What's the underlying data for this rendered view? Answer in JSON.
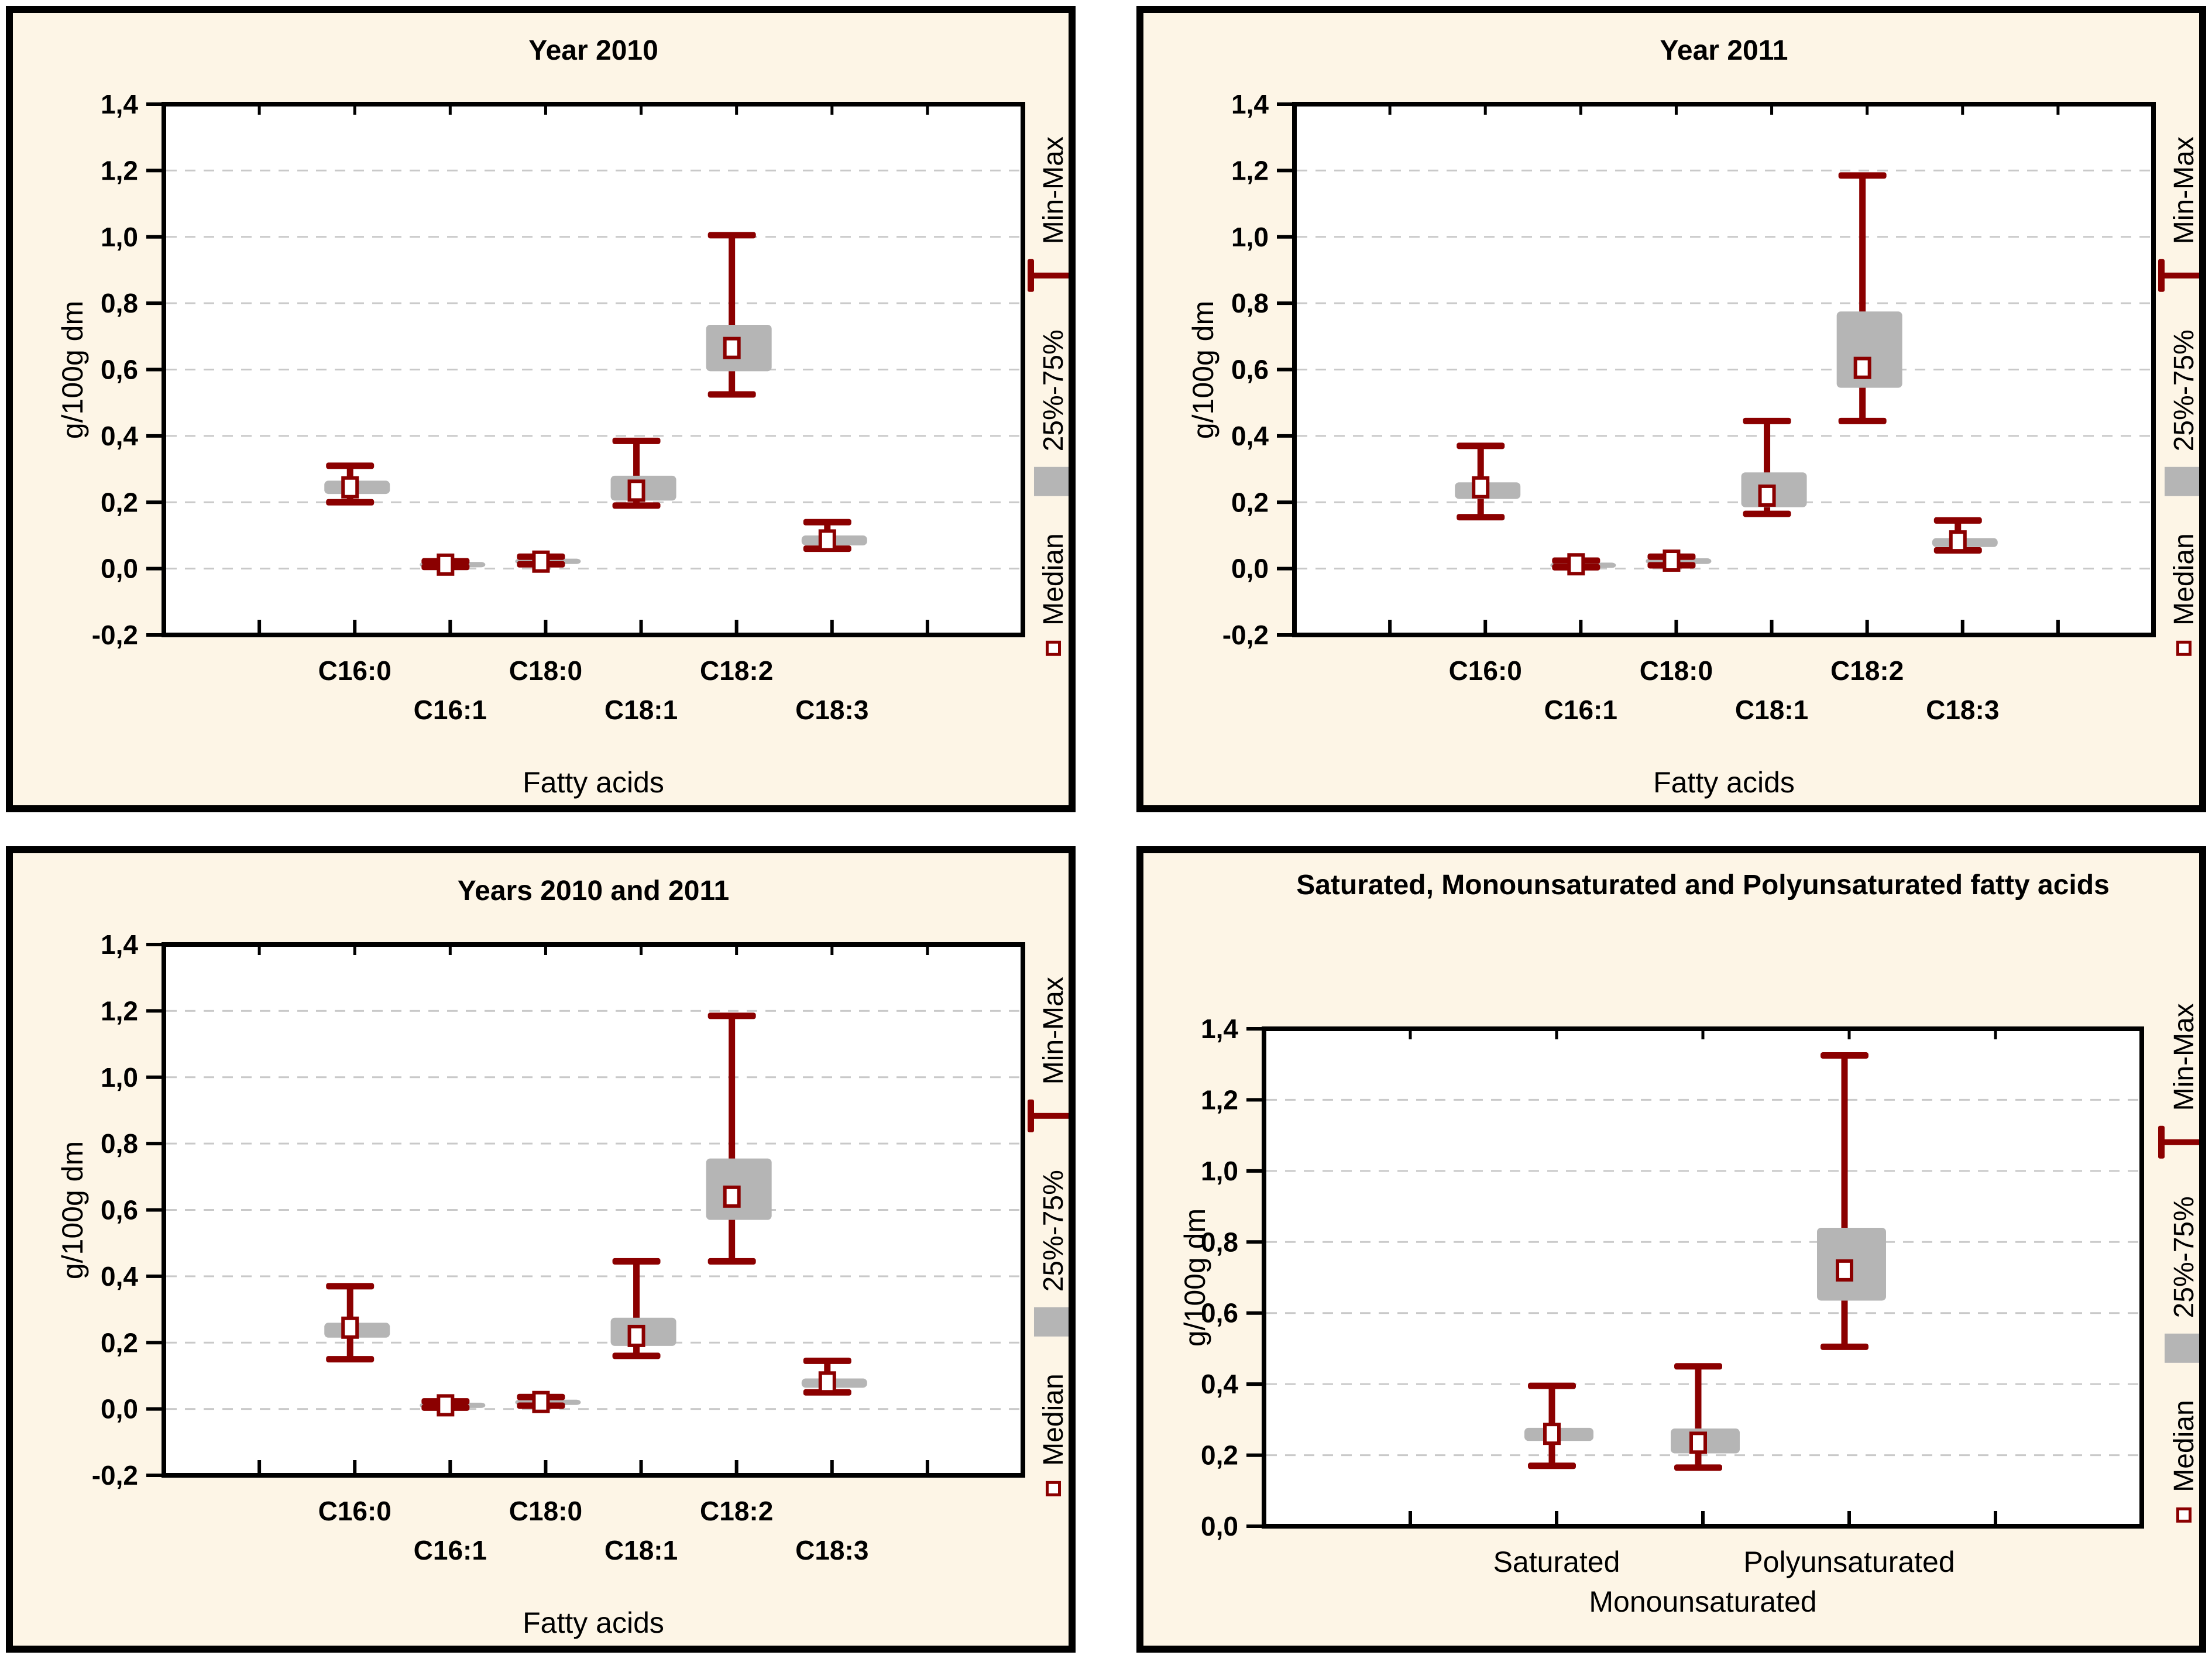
{
  "colors": {
    "panel_background": "#FDF5E6",
    "plot_background": "#FFFFFF",
    "border": "#000000",
    "gridline": "#C9C9C9",
    "box_fill": "#B5B5B5",
    "whisker": "#8B0000",
    "median_fill": "#FFFFFF",
    "text": "#000000"
  },
  "legend": {
    "minmax": "Min-Max",
    "box": "25%-75%",
    "median": "Median"
  },
  "chart_data": [
    {
      "type": "box",
      "title": "Year 2010",
      "xlabel": "Fatty acids",
      "ylabel": "g/100g dm",
      "ylim": [
        -0.2,
        1.4
      ],
      "yticks": [
        -0.2,
        0.0,
        0.2,
        0.4,
        0.6,
        0.8,
        1.0,
        1.2,
        1.4
      ],
      "ytick_labels": [
        "-0,2",
        "0,0",
        "0,2",
        "0,4",
        "0,6",
        "0,8",
        "1,0",
        "1,2",
        "1,4"
      ],
      "grid": true,
      "legend_position": "right-rotated",
      "axis_divisions": 9,
      "category_slots": [
        2,
        3,
        4,
        5,
        6,
        7
      ],
      "label_rows": [
        0,
        1,
        0,
        1,
        0,
        1
      ],
      "categories": [
        "C16:0",
        "C16:1",
        "C18:0",
        "C18:1",
        "C18:2",
        "C18:3"
      ],
      "series": [
        {
          "name": "C16:0",
          "min": 0.2,
          "q1": 0.225,
          "median": 0.245,
          "q3": 0.265,
          "max": 0.31
        },
        {
          "name": "C16:1",
          "min": 0.005,
          "q1": 0.004,
          "median": 0.012,
          "q3": 0.02,
          "max": 0.022
        },
        {
          "name": "C18:0",
          "min": 0.013,
          "q1": 0.014,
          "median": 0.021,
          "q3": 0.03,
          "max": 0.036
        },
        {
          "name": "C18:1",
          "min": 0.19,
          "q1": 0.205,
          "median": 0.235,
          "q3": 0.28,
          "max": 0.385
        },
        {
          "name": "C18:2",
          "min": 0.525,
          "q1": 0.595,
          "median": 0.665,
          "q3": 0.735,
          "max": 1.005
        },
        {
          "name": "C18:3",
          "min": 0.06,
          "q1": 0.07,
          "median": 0.085,
          "q3": 0.1,
          "max": 0.14
        }
      ]
    },
    {
      "type": "box",
      "title": "Year 2011",
      "xlabel": "Fatty acids",
      "ylabel": "g/100g dm",
      "ylim": [
        -0.2,
        1.4
      ],
      "yticks": [
        -0.2,
        0.0,
        0.2,
        0.4,
        0.6,
        0.8,
        1.0,
        1.2,
        1.4
      ],
      "ytick_labels": [
        "-0,2",
        "0,0",
        "0,2",
        "0,4",
        "0,6",
        "0,8",
        "1,0",
        "1,2",
        "1,4"
      ],
      "grid": true,
      "legend_position": "right-rotated",
      "axis_divisions": 9,
      "category_slots": [
        2,
        3,
        4,
        5,
        6,
        7
      ],
      "label_rows": [
        0,
        1,
        0,
        1,
        0,
        1
      ],
      "categories": [
        "C16:0",
        "C16:1",
        "C18:0",
        "C18:1",
        "C18:2",
        "C18:3"
      ],
      "series": [
        {
          "name": "C16:0",
          "min": 0.155,
          "q1": 0.21,
          "median": 0.245,
          "q3": 0.26,
          "max": 0.37
        },
        {
          "name": "C16:1",
          "min": 0.004,
          "q1": 0.004,
          "median": 0.013,
          "q3": 0.018,
          "max": 0.024
        },
        {
          "name": "C18:0",
          "min": 0.01,
          "q1": 0.014,
          "median": 0.024,
          "q3": 0.031,
          "max": 0.036
        },
        {
          "name": "C18:1",
          "min": 0.165,
          "q1": 0.185,
          "median": 0.22,
          "q3": 0.29,
          "max": 0.445
        },
        {
          "name": "C18:2",
          "min": 0.445,
          "q1": 0.545,
          "median": 0.605,
          "q3": 0.775,
          "max": 1.185
        },
        {
          "name": "C18:3",
          "min": 0.055,
          "q1": 0.065,
          "median": 0.082,
          "q3": 0.092,
          "max": 0.145
        }
      ]
    },
    {
      "type": "box",
      "title": "Years 2010 and 2011",
      "xlabel": "Fatty acids",
      "ylabel": "g/100g dm",
      "ylim": [
        -0.2,
        1.4
      ],
      "yticks": [
        -0.2,
        0.0,
        0.2,
        0.4,
        0.6,
        0.8,
        1.0,
        1.2,
        1.4
      ],
      "ytick_labels": [
        "-0,2",
        "0,0",
        "0,2",
        "0,4",
        "0,6",
        "0,8",
        "1,0",
        "1,2",
        "1,4"
      ],
      "grid": true,
      "legend_position": "right-rotated",
      "axis_divisions": 9,
      "category_slots": [
        2,
        3,
        4,
        5,
        6,
        7
      ],
      "label_rows": [
        0,
        1,
        0,
        1,
        0,
        1
      ],
      "categories": [
        "C16:0",
        "C16:1",
        "C18:0",
        "C18:1",
        "C18:2",
        "C18:3"
      ],
      "series": [
        {
          "name": "C16:0",
          "min": 0.15,
          "q1": 0.215,
          "median": 0.245,
          "q3": 0.26,
          "max": 0.37
        },
        {
          "name": "C16:1",
          "min": 0.004,
          "q1": 0.004,
          "median": 0.011,
          "q3": 0.019,
          "max": 0.023
        },
        {
          "name": "C18:0",
          "min": 0.01,
          "q1": 0.013,
          "median": 0.021,
          "q3": 0.028,
          "max": 0.036
        },
        {
          "name": "C18:1",
          "min": 0.16,
          "q1": 0.19,
          "median": 0.22,
          "q3": 0.275,
          "max": 0.445
        },
        {
          "name": "C18:2",
          "min": 0.445,
          "q1": 0.57,
          "median": 0.64,
          "q3": 0.755,
          "max": 1.185
        },
        {
          "name": "C18:3",
          "min": 0.05,
          "q1": 0.064,
          "median": 0.08,
          "q3": 0.092,
          "max": 0.145
        }
      ]
    },
    {
      "type": "box",
      "title": "Saturated, Monounsaturated and Polyunsaturated fatty acids",
      "xlabel": "",
      "ylabel": "g/100g dm",
      "ylim": [
        0.0,
        1.4
      ],
      "yticks": [
        0.0,
        0.2,
        0.4,
        0.6,
        0.8,
        1.0,
        1.2,
        1.4
      ],
      "ytick_labels": [
        "0,0",
        "0,2",
        "0,4",
        "0,6",
        "0,8",
        "1,0",
        "1,2",
        "1,4"
      ],
      "grid": true,
      "legend_position": "right-rotated",
      "axis_divisions": 6,
      "category_slots": [
        2,
        3,
        4
      ],
      "label_rows": [
        0,
        1,
        0
      ],
      "categories": [
        "Saturated",
        "Monounsaturated",
        "Polyunsaturated"
      ],
      "series": [
        {
          "name": "Saturated",
          "min": 0.17,
          "q1": 0.24,
          "median": 0.26,
          "q3": 0.277,
          "max": 0.395
        },
        {
          "name": "Monounsaturated",
          "min": 0.165,
          "q1": 0.205,
          "median": 0.235,
          "q3": 0.275,
          "max": 0.45
        },
        {
          "name": "Polyunsaturated",
          "min": 0.505,
          "q1": 0.635,
          "median": 0.72,
          "q3": 0.84,
          "max": 1.325
        }
      ]
    }
  ]
}
